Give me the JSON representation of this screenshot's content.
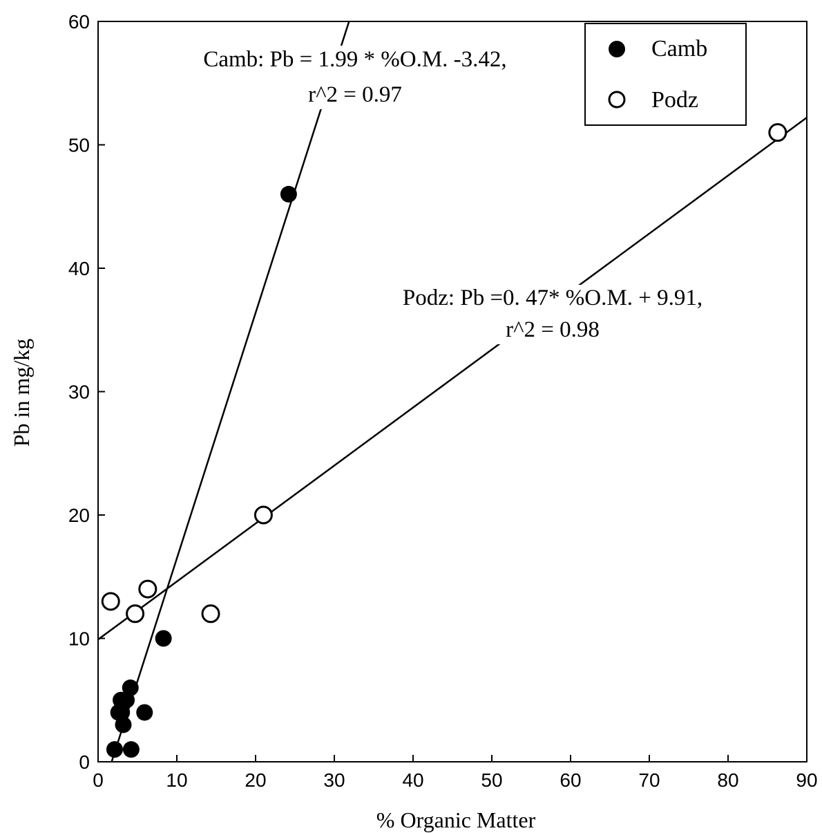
{
  "chart_data": {
    "type": "scatter",
    "title": "",
    "xlabel": "% Organic Matter",
    "ylabel": "Pb in  mg/kg",
    "xlim": [
      0,
      90
    ],
    "ylim": [
      0,
      60
    ],
    "xticks": [
      "0",
      "10",
      "20",
      "30",
      "40",
      "50",
      "60",
      "70",
      "80",
      "90"
    ],
    "yticks": [
      "0",
      "10",
      "20",
      "30",
      "40",
      "50",
      "60"
    ],
    "grid": false,
    "legend_position": "top-right",
    "series": [
      {
        "name": "Camb",
        "marker": "filled-circle",
        "color": "#000000",
        "points": [
          {
            "x": 2.1,
            "y": 1
          },
          {
            "x": 4.2,
            "y": 1
          },
          {
            "x": 3.2,
            "y": 3
          },
          {
            "x": 2.6,
            "y": 4
          },
          {
            "x": 3.0,
            "y": 4
          },
          {
            "x": 5.9,
            "y": 4
          },
          {
            "x": 2.9,
            "y": 5
          },
          {
            "x": 3.6,
            "y": 5
          },
          {
            "x": 4.1,
            "y": 6
          },
          {
            "x": 8.3,
            "y": 10
          },
          {
            "x": 24.2,
            "y": 46
          }
        ],
        "fit": {
          "slope": 1.99,
          "intercept": -3.42,
          "x_range": [
            1.72,
            31.87
          ]
        }
      },
      {
        "name": "Podz",
        "marker": "open-circle",
        "color": "#000000",
        "points": [
          {
            "x": 1.6,
            "y": 13
          },
          {
            "x": 4.7,
            "y": 12
          },
          {
            "x": 6.3,
            "y": 14
          },
          {
            "x": 14.3,
            "y": 12
          },
          {
            "x": 21.0,
            "y": 20
          },
          {
            "x": 86.3,
            "y": 51
          }
        ],
        "fit": {
          "slope": 0.47,
          "intercept": 9.91,
          "x_range": [
            0,
            90
          ]
        }
      }
    ],
    "annotations": [
      {
        "id": "camb",
        "line1": "Camb: Pb = 1.99 * %O.M.  -3.42,",
        "line2": "r^2 = 0.97"
      },
      {
        "id": "podz",
        "line1": "Podz: Pb =0. 47* %O.M. + 9.91,",
        "line2": "r^2 = 0.98"
      }
    ]
  }
}
